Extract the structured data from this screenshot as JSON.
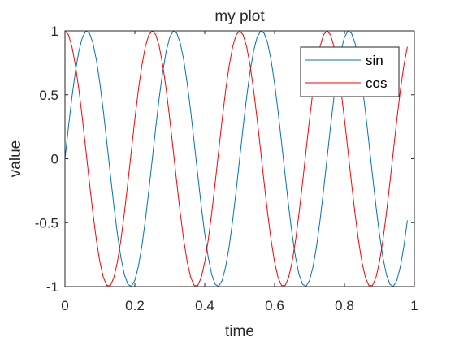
{
  "chart_data": {
    "type": "line",
    "title": "my plot",
    "xlabel": "time",
    "ylabel": "value",
    "xlim": [
      0,
      1
    ],
    "ylim": [
      -1,
      1
    ],
    "xticks": [
      0,
      0.2,
      0.4,
      0.6,
      0.8,
      1
    ],
    "xtick_labels": [
      "0",
      "0.2",
      "0.4",
      "0.6",
      "0.8",
      "1"
    ],
    "yticks": [
      -1,
      -0.5,
      0,
      0.5,
      1
    ],
    "ytick_labels": [
      "-1",
      "-0.5",
      "0",
      "0.5",
      "1"
    ],
    "grid": false,
    "legend_position": "top-right",
    "legend": [
      "sin",
      "cos"
    ],
    "series": [
      {
        "name": "sin",
        "color": "#0072BD",
        "function": "sin(2*pi*4*t)",
        "x": [
          0,
          0.01,
          0.02,
          0.03,
          0.04,
          0.05,
          0.06,
          0.07,
          0.08,
          0.09,
          0.1,
          0.11,
          0.12,
          0.13,
          0.14,
          0.15,
          0.16,
          0.17,
          0.18,
          0.19,
          0.2,
          0.21,
          0.22,
          0.23,
          0.24,
          0.25,
          0.26,
          0.27,
          0.28,
          0.29,
          0.3,
          0.31,
          0.32,
          0.33,
          0.34,
          0.35,
          0.36,
          0.37,
          0.38,
          0.39,
          0.4,
          0.41,
          0.42,
          0.43,
          0.44,
          0.45,
          0.46,
          0.47,
          0.48,
          0.49,
          0.5,
          0.51,
          0.52,
          0.53,
          0.54,
          0.55,
          0.56,
          0.57,
          0.58,
          0.59,
          0.6,
          0.61,
          0.62,
          0.63,
          0.64,
          0.65,
          0.66,
          0.67,
          0.68,
          0.69,
          0.7,
          0.71,
          0.72,
          0.73,
          0.74,
          0.75,
          0.76,
          0.77,
          0.78,
          0.79,
          0.8,
          0.81,
          0.82,
          0.83,
          0.84,
          0.85,
          0.86,
          0.87,
          0.88,
          0.89,
          0.9,
          0.91,
          0.92,
          0.93,
          0.94,
          0.95,
          0.96,
          0.97,
          0.98
        ],
        "values": [
          0,
          0.249,
          0.482,
          0.685,
          0.844,
          0.951,
          0.998,
          0.982,
          0.905,
          0.771,
          0.588,
          0.368,
          0.125,
          -0.125,
          -0.368,
          -0.588,
          -0.771,
          -0.905,
          -0.982,
          -0.998,
          -0.951,
          -0.844,
          -0.685,
          -0.482,
          -0.249,
          0,
          0.249,
          0.482,
          0.685,
          0.844,
          0.951,
          0.998,
          0.982,
          0.905,
          0.771,
          0.588,
          0.368,
          0.125,
          -0.125,
          -0.368,
          -0.588,
          -0.771,
          -0.905,
          -0.982,
          -0.998,
          -0.951,
          -0.844,
          -0.685,
          -0.482,
          -0.249,
          0,
          0.249,
          0.482,
          0.685,
          0.844,
          0.951,
          0.998,
          0.982,
          0.905,
          0.771,
          0.588,
          0.368,
          0.125,
          -0.125,
          -0.368,
          -0.588,
          -0.771,
          -0.905,
          -0.982,
          -0.998,
          -0.951,
          -0.844,
          -0.685,
          -0.482,
          -0.249,
          0,
          0.249,
          0.482,
          0.685,
          0.844,
          0.951,
          0.998,
          0.982,
          0.905,
          0.771,
          0.588,
          0.368,
          0.125,
          -0.125,
          -0.368,
          -0.588,
          -0.771,
          -0.905,
          -0.982,
          -0.998,
          -0.951,
          -0.844,
          -0.685,
          -0.482
        ]
      },
      {
        "name": "cos",
        "color": "#FF0000",
        "function": "cos(2*pi*4*t)",
        "x": [
          0,
          0.01,
          0.02,
          0.03,
          0.04,
          0.05,
          0.06,
          0.07,
          0.08,
          0.09,
          0.1,
          0.11,
          0.12,
          0.13,
          0.14,
          0.15,
          0.16,
          0.17,
          0.18,
          0.19,
          0.2,
          0.21,
          0.22,
          0.23,
          0.24,
          0.25,
          0.26,
          0.27,
          0.28,
          0.29,
          0.3,
          0.31,
          0.32,
          0.33,
          0.34,
          0.35,
          0.36,
          0.37,
          0.38,
          0.39,
          0.4,
          0.41,
          0.42,
          0.43,
          0.44,
          0.45,
          0.46,
          0.47,
          0.48,
          0.49,
          0.5,
          0.51,
          0.52,
          0.53,
          0.54,
          0.55,
          0.56,
          0.57,
          0.58,
          0.59,
          0.6,
          0.61,
          0.62,
          0.63,
          0.64,
          0.65,
          0.66,
          0.67,
          0.68,
          0.69,
          0.7,
          0.71,
          0.72,
          0.73,
          0.74,
          0.75,
          0.76,
          0.77,
          0.78,
          0.79,
          0.8,
          0.81,
          0.82,
          0.83,
          0.84,
          0.85,
          0.86,
          0.87,
          0.88,
          0.89,
          0.9,
          0.91,
          0.92,
          0.93,
          0.94,
          0.95,
          0.96,
          0.97,
          0.98
        ],
        "values": [
          1,
          0.969,
          0.876,
          0.729,
          0.536,
          0.309,
          0.063,
          -0.187,
          -0.426,
          -0.637,
          -0.809,
          -0.93,
          -0.992,
          -0.992,
          -0.93,
          -0.809,
          -0.637,
          -0.426,
          -0.187,
          0.063,
          0.309,
          0.536,
          0.729,
          0.876,
          0.969,
          1,
          0.969,
          0.876,
          0.729,
          0.536,
          0.309,
          0.063,
          -0.187,
          -0.426,
          -0.637,
          -0.809,
          -0.93,
          -0.992,
          -0.992,
          -0.93,
          -0.809,
          -0.637,
          -0.426,
          -0.187,
          0.063,
          0.309,
          0.536,
          0.729,
          0.876,
          0.969,
          1,
          0.969,
          0.876,
          0.729,
          0.536,
          0.309,
          0.063,
          -0.187,
          -0.426,
          -0.637,
          -0.809,
          -0.93,
          -0.992,
          -0.992,
          -0.93,
          -0.809,
          -0.637,
          -0.426,
          -0.187,
          0.063,
          0.309,
          0.536,
          0.729,
          0.876,
          0.969,
          1,
          0.969,
          0.876,
          0.729,
          0.536,
          0.309,
          0.063,
          -0.187,
          -0.426,
          -0.637,
          -0.809,
          -0.93,
          -0.992,
          -0.992,
          -0.93,
          -0.809,
          -0.637,
          -0.426,
          -0.187,
          0.063,
          0.309,
          0.536,
          0.729,
          0.876
        ]
      }
    ]
  }
}
